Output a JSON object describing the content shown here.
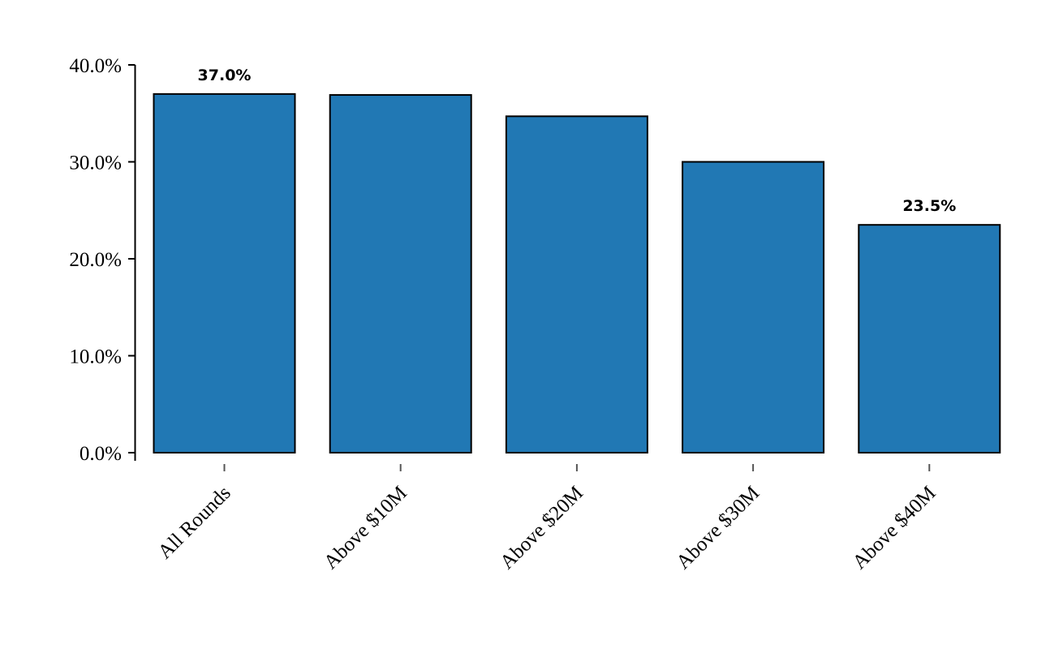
{
  "chart_data": {
    "type": "bar",
    "title": "",
    "xlabel": "",
    "ylabel": "",
    "categories": [
      "All Rounds",
      "Above $10M",
      "Above $20M",
      "Above $30M",
      "Above $40M"
    ],
    "values": [
      37.0,
      36.9,
      34.7,
      30.0,
      23.5
    ],
    "data_labels": [
      {
        "index": 0,
        "text": "37.0%"
      },
      {
        "index": 4,
        "text": "23.5%"
      }
    ],
    "ylim": [
      0,
      40
    ],
    "yticks": [
      0,
      10,
      20,
      30,
      40
    ],
    "ytick_labels": [
      "0.0%",
      "10.0%",
      "20.0%",
      "30.0%",
      "40.0%"
    ],
    "bar_color": "#2178b4",
    "edge_color": "#000000",
    "grid": false,
    "legend": "none"
  }
}
